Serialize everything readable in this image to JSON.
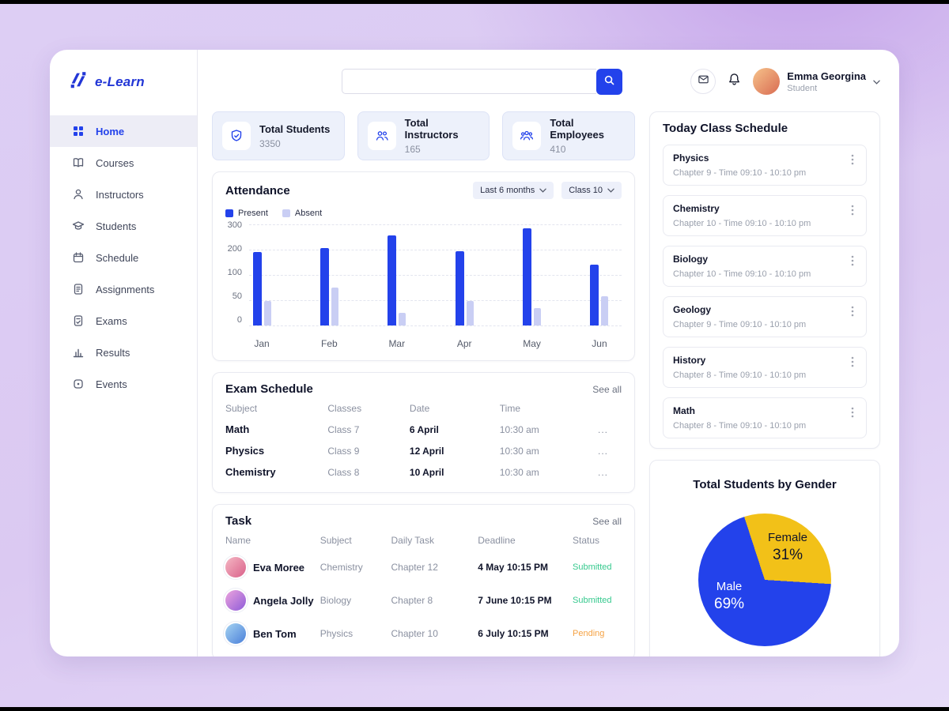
{
  "app": {
    "logo_text": "e-Learn"
  },
  "sidebar": {
    "items": [
      {
        "label": "Home",
        "icon": "home-icon",
        "state_class": "active"
      },
      {
        "label": "Courses",
        "icon": "courses-icon",
        "state_class": ""
      },
      {
        "label": "Instructors",
        "icon": "instructors-icon",
        "state_class": ""
      },
      {
        "label": "Students",
        "icon": "students-icon",
        "state_class": ""
      },
      {
        "label": "Schedule",
        "icon": "schedule-icon",
        "state_class": ""
      },
      {
        "label": "Assignments",
        "icon": "assignments-icon",
        "state_class": ""
      },
      {
        "label": "Exams",
        "icon": "exams-icon",
        "state_class": ""
      },
      {
        "label": "Results",
        "icon": "results-icon",
        "state_class": ""
      },
      {
        "label": "Events",
        "icon": "events-icon",
        "state_class": ""
      }
    ]
  },
  "topbar": {
    "search": {
      "placeholder": "",
      "value": ""
    },
    "user": {
      "name": "Emma Georgina",
      "role": "Student",
      "avatar": "linear-gradient(135deg,#f6c38b,#d96b52)"
    }
  },
  "stats": {
    "cards": [
      {
        "label": "Total Students",
        "value": "3350",
        "icon": "badge-icon"
      },
      {
        "label": "Total Instructors",
        "value": "165",
        "icon": "two-people-icon"
      },
      {
        "label": "Total Employees",
        "value": "410",
        "icon": "people-group-icon"
      }
    ]
  },
  "attendance": {
    "title": "Attendance",
    "filters": [
      {
        "label": "Last 6 months"
      },
      {
        "label": "Class 10"
      }
    ],
    "legend": [
      {
        "label": "Present",
        "color": "#2342EB"
      },
      {
        "label": "Absent",
        "color": "#C9CEF4"
      }
    ]
  },
  "chart_data": [
    {
      "type": "bar",
      "title": "Attendance",
      "categories": [
        "Jan",
        "Feb",
        "Mar",
        "Apr",
        "May",
        "Jun"
      ],
      "series": [
        {
          "name": "Present",
          "color": "#2342EB",
          "values": [
            190,
            205,
            255,
            195,
            285,
            140
          ]
        },
        {
          "name": "Absent",
          "color": "#C9CEF4",
          "values": [
            48,
            75,
            25,
            48,
            35,
            58
          ]
        }
      ],
      "ylim": [
        0,
        300
      ],
      "yticks": [
        0,
        50,
        100,
        200,
        300
      ],
      "grid": true,
      "legend_position": "top-left"
    },
    {
      "type": "pie",
      "title": "Total Students by Gender",
      "labels": [
        "Male",
        "Female"
      ],
      "values": [
        69,
        31
      ],
      "colors": [
        "#2342EB",
        "#F2C118"
      ],
      "rotation_deg": -18
    }
  ],
  "exam": {
    "title": "Exam Schedule",
    "see_all": "See all",
    "headers": [
      "Subject",
      "Classes",
      "Date",
      "Time"
    ],
    "rows": [
      {
        "subject": "Math",
        "class": "Class 7",
        "date": "6 April",
        "time": "10:30 am",
        "more": "..."
      },
      {
        "subject": "Physics",
        "class": "Class 9",
        "date": "12 April",
        "time": "10:30 am",
        "more": "..."
      },
      {
        "subject": "Chemistry",
        "class": "Class 8",
        "date": "10 April",
        "time": "10:30 am",
        "more": "..."
      }
    ]
  },
  "task": {
    "title": "Task",
    "see_all": "See all",
    "headers": [
      "Name",
      "Subject",
      "Daily Task",
      "Deadline",
      "Status"
    ],
    "rows": [
      {
        "name": "Eva Moree",
        "subject": "Chemistry",
        "daily_task": "Chapter 12",
        "deadline": "4 May 10:15 PM",
        "status": "Submitted",
        "status_color": "#36C98E",
        "avatar": "linear-gradient(135deg,#f5b8c4,#d9608a)"
      },
      {
        "name": "Angela Jolly",
        "subject": "Biology",
        "daily_task": "Chapter 8",
        "deadline": "7 June 10:15 PM",
        "status": "Submitted",
        "status_color": "#36C98E",
        "avatar": "linear-gradient(135deg,#eda4dd,#8e5bd9)"
      },
      {
        "name": "Ben Tom",
        "subject": "Physics",
        "daily_task": "Chapter 10",
        "deadline": "6 July 10:15 PM",
        "status": "Pending",
        "status_color": "#F5A243",
        "avatar": "linear-gradient(135deg,#a6d4f2,#4a7fd9)"
      }
    ]
  },
  "schedule": {
    "title": "Today Class Schedule",
    "items": [
      {
        "subject": "Physics",
        "detail": "Chapter 9 - Time 09:10 - 10:10 pm"
      },
      {
        "subject": "Chemistry",
        "detail": "Chapter 10 - Time 09:10 - 10:10 pm"
      },
      {
        "subject": "Biology",
        "detail": "Chapter 10 - Time 09:10 - 10:10 pm"
      },
      {
        "subject": "Geology",
        "detail": "Chapter 9 - Time 09:10 - 10:10 pm"
      },
      {
        "subject": "History",
        "detail": "Chapter 8 - Time 09:10 - 10:10 pm"
      },
      {
        "subject": "Math",
        "detail": "Chapter 8 - Time 09:10 - 10:10 pm"
      }
    ]
  },
  "gender": {
    "title": "Total Students by Gender",
    "slices": [
      {
        "label": "Male",
        "pct_label": "69%",
        "color": "#2342EB"
      },
      {
        "label": "Female",
        "pct_label": "31%",
        "color": "#F2C118"
      }
    ]
  }
}
